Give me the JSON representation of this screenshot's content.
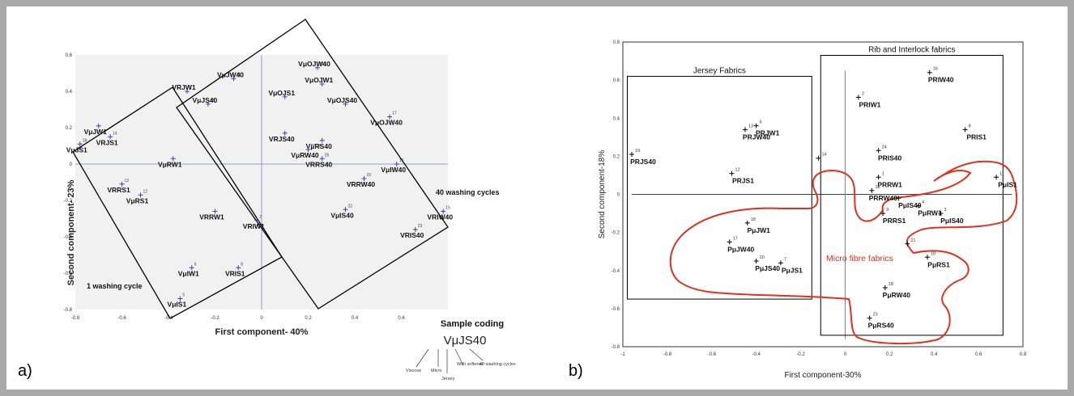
{
  "panels": {
    "a_letter": "a)",
    "b_letter": "b)"
  },
  "chart_data": [
    {
      "type": "scatter",
      "panel": "a",
      "xlabel": "First component- 40%",
      "ylabel": "Second component- 23%",
      "xlim": [
        -0.8,
        0.8
      ],
      "ylim": [
        -0.8,
        0.6
      ],
      "xticks": [
        "-0.8",
        "-0.6",
        "-0.4",
        "-0.2",
        "0",
        "0.2",
        "0.4",
        "0.6"
      ],
      "yticks": [
        "0.6",
        "0.4",
        "0.2",
        "0",
        "-0.2",
        "-0.4",
        "-0.6",
        "-0.8"
      ],
      "grid": false,
      "points": [
        {
          "label": "VμJW40",
          "num": "21",
          "x": -0.12,
          "y": 0.47
        },
        {
          "label": "VRJW1",
          "num": "1",
          "x": -0.32,
          "y": 0.4
        },
        {
          "label": "VμJS40",
          "num": "25",
          "x": -0.23,
          "y": 0.33
        },
        {
          "label": "VμOJW40",
          "num": "30",
          "x": 0.24,
          "y": 0.53
        },
        {
          "label": "VμOJW1",
          "num": "",
          "x": 0.26,
          "y": 0.44
        },
        {
          "label": "VμOJS1",
          "num": "",
          "x": 0.1,
          "y": 0.37
        },
        {
          "label": "VμOJS40",
          "num": "",
          "x": 0.36,
          "y": 0.33
        },
        {
          "label": "VμOJW40",
          "num": "17",
          "x": 0.55,
          "y": 0.26
        },
        {
          "label": "VμJW1",
          "num": "",
          "x": -0.7,
          "y": 0.21
        },
        {
          "label": "VRJS1",
          "num": "14",
          "x": -0.65,
          "y": 0.15
        },
        {
          "label": "VμJS1",
          "num": "18",
          "x": -0.78,
          "y": 0.11
        },
        {
          "label": "VμRW1",
          "num": "",
          "x": -0.38,
          "y": 0.03
        },
        {
          "label": "VRJS40",
          "num": "",
          "x": 0.1,
          "y": 0.17
        },
        {
          "label": "VμRS40",
          "num": "",
          "x": 0.26,
          "y": 0.13
        },
        {
          "label": "VμRW40",
          "num": "27 28",
          "x": 0.2,
          "y": 0.08
        },
        {
          "label": "VRRS40",
          "num": "26",
          "x": 0.26,
          "y": 0.03
        },
        {
          "label": "VμIW40",
          "num": "16",
          "x": 0.58,
          "y": 0.0
        },
        {
          "label": "VRRW40",
          "num": "19",
          "x": 0.44,
          "y": -0.08
        },
        {
          "label": "VRRS1",
          "num": "13",
          "x": -0.6,
          "y": -0.11
        },
        {
          "label": "VμRS1",
          "num": "12",
          "x": -0.52,
          "y": -0.17
        },
        {
          "label": "VRRW1",
          "num": "",
          "x": -0.2,
          "y": -0.26
        },
        {
          "label": "VμIS40",
          "num": "22",
          "x": 0.36,
          "y": -0.25
        },
        {
          "label": "VRIW1",
          "num": "2",
          "x": -0.02,
          "y": -0.31
        },
        {
          "label": "VRIW40",
          "num": "15",
          "x": 0.78,
          "y": -0.26
        },
        {
          "label": "VRIS40",
          "num": "23",
          "x": 0.66,
          "y": -0.36
        },
        {
          "label": "VμIW1",
          "num": "6",
          "x": -0.3,
          "y": -0.57
        },
        {
          "label": "VRIS1",
          "num": "8",
          "x": -0.1,
          "y": -0.57
        },
        {
          "label": "VμIS1",
          "num": "5",
          "x": -0.35,
          "y": -0.74
        }
      ],
      "annotations": {
        "group_right": "40 washing cycles",
        "group_left": "1 washing cycle",
        "coding_title": "Sample coding",
        "coding_example": "VμJS40",
        "coding_viscose": "Viscose",
        "coding_micro": "Micro",
        "coding_jersey": "Jersey",
        "coding_softener": "With softener",
        "coding_cycles": "40 washing cycles"
      }
    },
    {
      "type": "scatter",
      "panel": "b",
      "xlabel": "First component-30%",
      "ylabel": "Second component-18%",
      "xlim": [
        -1,
        0.8
      ],
      "ylim": [
        -0.8,
        0.8
      ],
      "xticks": [
        "-1",
        "-0.8",
        "-0.6",
        "-0.4",
        "-0.2",
        "0",
        "0.2",
        "0.4",
        "0.6",
        "0.8"
      ],
      "yticks": [
        "0.8",
        "0.6",
        "0.4",
        "0.2",
        "0",
        "-0.2",
        "-0.4",
        "-0.6",
        "-0.8"
      ],
      "grid": false,
      "points": [
        {
          "label": "PRJW1",
          "num": "6",
          "x": -0.4,
          "y": 0.36
        },
        {
          "label": "PRJW40",
          "num": "13",
          "x": -0.45,
          "y": 0.34
        },
        {
          "label": "PRJS40",
          "num": "19",
          "x": -0.96,
          "y": 0.21
        },
        {
          "label": "PRJS1",
          "num": "12",
          "x": -0.51,
          "y": 0.11
        },
        {
          "label": "PRIW40",
          "num": "16",
          "x": 0.38,
          "y": 0.64
        },
        {
          "label": "PRIW1",
          "num": "2",
          "x": 0.06,
          "y": 0.51
        },
        {
          "label": "PRIS1",
          "num": "8",
          "x": 0.54,
          "y": 0.34
        },
        {
          "label": "PRIS40",
          "num": "24",
          "x": 0.15,
          "y": 0.23
        },
        {
          "label": "PRRW1",
          "num": "1",
          "x": 0.15,
          "y": 0.09
        },
        {
          "label": "PμIS1",
          "num": "11",
          "x": 0.68,
          "y": 0.09
        },
        {
          "label": "PRRW40",
          "num": "15",
          "x": 0.12,
          "y": 0.02
        },
        {
          "label": "PμIS40",
          "num": "",
          "x": 0.24,
          "y": -0.02
        },
        {
          "label": "PμRW1",
          "num": "4",
          "x": 0.33,
          "y": -0.06
        },
        {
          "label": "PμIS40",
          "num": "3",
          "x": 0.43,
          "y": -0.1
        },
        {
          "label": "PRRS1",
          "num": "9",
          "x": 0.17,
          "y": -0.1
        },
        {
          "label": "PμJW1",
          "num": "18",
          "x": -0.44,
          "y": -0.15
        },
        {
          "label": "PμJW40",
          "num": "17",
          "x": -0.52,
          "y": -0.25
        },
        {
          "label": "PμJS40",
          "num": "20",
          "x": -0.4,
          "y": -0.35
        },
        {
          "label": "PμJS1",
          "num": "7",
          "x": -0.29,
          "y": -0.36
        },
        {
          "label": "",
          "num": "14",
          "x": -0.12,
          "y": 0.19
        },
        {
          "label": "",
          "num": "21",
          "x": 0.28,
          "y": -0.26
        },
        {
          "label": "PμRS1",
          "num": "10",
          "x": 0.37,
          "y": -0.33
        },
        {
          "label": "PμRW40",
          "num": "18",
          "x": 0.18,
          "y": -0.49
        },
        {
          "label": "PμRS40",
          "num": "23",
          "x": 0.11,
          "y": -0.65
        }
      ],
      "annotations": {
        "jersey_box": "Jersey Fabrics",
        "rib_box": "Rib and Interlock fabrics",
        "micro_region": "Micro fibre fabrics",
        "micro_color": "#e0301e"
      }
    }
  ]
}
